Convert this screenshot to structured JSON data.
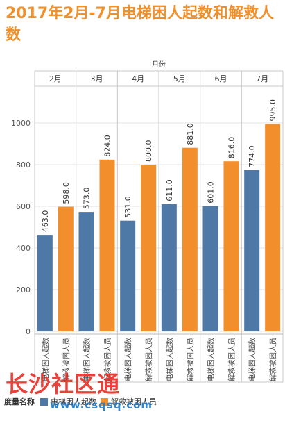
{
  "chart_data": {
    "type": "bar",
    "title": "2017年2月-7月电梯困人起数和解救人数",
    "column_header": "月份",
    "categories": [
      "2月",
      "3月",
      "4月",
      "5月",
      "6月",
      "7月"
    ],
    "series": [
      {
        "name": "电梯困人起数",
        "values": [
          463.0,
          573.0,
          531.0,
          611.0,
          601.0,
          774.0
        ],
        "color": "#4e79a7"
      },
      {
        "name": "解救被困人员",
        "values": [
          598.0,
          824.0,
          800.0,
          881.0,
          816.0,
          995.0
        ],
        "color": "#f28e2b"
      }
    ],
    "yticks": [
      0,
      200,
      400,
      600,
      800,
      1000
    ],
    "ylim": [
      0,
      1000
    ],
    "grid": true,
    "legend_title": "度量名称",
    "legend_position": "bottom"
  },
  "watermark": {
    "text": "长沙社区通",
    "url": "www.csqsq.com"
  }
}
